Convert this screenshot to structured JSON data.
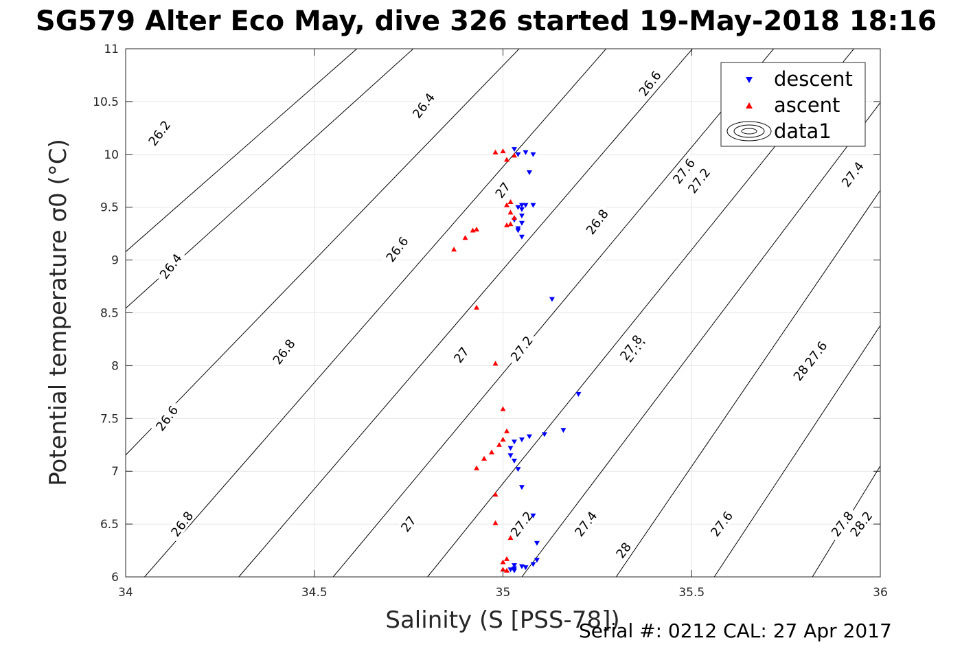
{
  "chart_data": {
    "type": "scatter",
    "title": "SG579 Alter Eco May, dive 326 started 19-May-2018 18:16",
    "xlabel": "Salinity (S [PSS-78])",
    "ylabel": "Potential temperature σ0 (°C)",
    "xlim": [
      34,
      36
    ],
    "ylim": [
      6,
      11
    ],
    "grid": true,
    "legend_placement": "top-right",
    "x_ticks": [
      "34",
      "34.5",
      "35",
      "35.5",
      "36"
    ],
    "y_ticks": [
      "6",
      "6.5",
      "7",
      "7.5",
      "8",
      "8.5",
      "9",
      "9.5",
      "10",
      "10.5",
      "11"
    ],
    "footer": "Serial #: 0212  CAL: 27 Apr 2017",
    "contours": {
      "legend_name": "data1",
      "line_color": "#000000",
      "levels": [
        {
          "value": 26.2,
          "label": "26.2",
          "x": [
            33.72,
            36.0
          ],
          "y": [
            8.2,
            15.35
          ]
        },
        {
          "value": 26.4,
          "label": "26.4",
          "x": [
            33.72,
            36.0
          ],
          "y": [
            7.64,
            14.99
          ]
        },
        {
          "value": 26.6,
          "label": "26.6",
          "x": [
            33.72,
            36.0
          ],
          "y": [
            6.12,
            14.53
          ]
        },
        {
          "value": 26.8,
          "label": "26.8",
          "x": [
            34.05,
            36.0
          ],
          "y": [
            6.0,
            13.97
          ]
        },
        {
          "value": 27.0,
          "label": "27",
          "x": [
            34.3,
            36.0
          ],
          "y": [
            6.0,
            13.07
          ]
        },
        {
          "value": 27.2,
          "label": "27.2",
          "x": [
            34.55,
            36.0
          ],
          "y": [
            6.0,
            12.21
          ]
        },
        {
          "value": 27.4,
          "label": "27.4",
          "x": [
            34.8,
            36.0
          ],
          "y": [
            6.0,
            11.31
          ]
        },
        {
          "value": 27.6,
          "label": "27.6",
          "x": [
            35.05,
            36.0
          ],
          "y": [
            6.0,
            10.49
          ]
        },
        {
          "value": 27.8,
          "label": "27.8",
          "x": [
            35.3,
            36.0
          ],
          "y": [
            6.0,
            9.66
          ]
        },
        {
          "value": 28.0,
          "label": "28",
          "x": [
            35.56,
            36.0
          ],
          "y": [
            6.0,
            8.38
          ]
        },
        {
          "value": 28.2,
          "label": "28.2",
          "x": [
            35.82,
            36.0
          ],
          "y": [
            6.0,
            7.05
          ]
        }
      ],
      "labels": [
        {
          "text": "26.2",
          "x": 34.09,
          "y": 10.2
        },
        {
          "text": "26.4",
          "x": 34.79,
          "y": 10.46
        },
        {
          "text": "26.6",
          "x": 35.39,
          "y": 10.67
        },
        {
          "text": "26.4",
          "x": 34.12,
          "y": 8.94
        },
        {
          "text": "26.6",
          "x": 34.72,
          "y": 9.1
        },
        {
          "text": "26.8",
          "x": 35.25,
          "y": 9.36
        },
        {
          "text": "27",
          "x": 35.0,
          "y": 9.66
        },
        {
          "text": "27.2",
          "x": 35.52,
          "y": 9.75
        },
        {
          "text": "27.4",
          "x": 36.0,
          "y": 9.81
        },
        {
          "text": "27.6",
          "x": 36.48,
          "y": 9.84
        },
        {
          "text": "26.6",
          "x": 34.11,
          "y": 7.5
        },
        {
          "text": "26.8",
          "x": 34.42,
          "y": 8.13
        },
        {
          "text": "27",
          "x": 34.89,
          "y": 8.1
        },
        {
          "text": "27.2",
          "x": 35.05,
          "y": 8.16
        },
        {
          "text": "27.4",
          "x": 35.35,
          "y": 8.15
        },
        {
          "text": "27.6",
          "x": 35.83,
          "y": 8.11
        },
        {
          "text": "27.8",
          "x": 36.34,
          "y": 8.17
        },
        {
          "text": "28",
          "x": 36.79,
          "y": 7.93
        },
        {
          "text": "26.8",
          "x": 34.15,
          "y": 6.5
        },
        {
          "text": "27",
          "x": 34.75,
          "y": 6.5
        },
        {
          "text": "27.2",
          "x": 35.05,
          "y": 6.5
        },
        {
          "text": "27.4",
          "x": 35.22,
          "y": 6.5
        },
        {
          "text": "27.6",
          "x": 35.58,
          "y": 6.5
        },
        {
          "text": "27.8",
          "x": 35.9,
          "y": 6.5
        },
        {
          "text": "28",
          "x": 36.32,
          "y": 6.25
        },
        {
          "text": "28.2",
          "x": 36.95,
          "y": 6.5
        }
      ]
    },
    "series": [
      {
        "name": "descent",
        "marker": "triangle-down",
        "color": "#0000ff",
        "x": [
          35.03,
          35.04,
          35.06,
          35.08,
          35.07,
          35.05,
          35.04,
          35.05,
          35.06,
          35.05,
          35.08,
          35.04,
          35.05,
          35.03,
          35.04,
          35.05,
          35.13,
          35.2,
          35.16,
          35.11,
          35.07,
          35.05,
          35.03,
          35.02,
          35.02,
          35.03,
          35.04,
          35.05,
          35.02,
          35.03,
          35.03,
          35.05,
          35.08,
          35.09,
          35.09,
          35.08,
          35.06,
          35.03
        ],
        "y": [
          10.05,
          10.0,
          10.02,
          10.0,
          9.83,
          9.52,
          9.5,
          9.48,
          9.52,
          9.35,
          9.52,
          9.3,
          9.42,
          9.38,
          9.28,
          9.22,
          8.63,
          7.73,
          7.39,
          7.35,
          7.33,
          7.3,
          7.28,
          7.22,
          7.15,
          7.1,
          7.02,
          6.85,
          6.07,
          6.08,
          6.11,
          6.1,
          6.12,
          6.16,
          6.32,
          6.58,
          6.09,
          6.06
        ]
      },
      {
        "name": "ascent",
        "marker": "triangle-up",
        "color": "#ff0000",
        "x": [
          34.98,
          35.0,
          35.01,
          35.03,
          35.02,
          35.01,
          35.02,
          35.03,
          35.02,
          35.01,
          34.93,
          34.92,
          34.9,
          34.87,
          34.93,
          34.98,
          35.0,
          35.01,
          35.0,
          34.99,
          34.97,
          34.95,
          34.93,
          34.98,
          34.98,
          35.02,
          35.0,
          35.01,
          35.0,
          35.01
        ],
        "y": [
          10.02,
          10.03,
          9.95,
          9.99,
          9.55,
          9.52,
          9.45,
          9.4,
          9.34,
          9.33,
          9.29,
          9.28,
          9.21,
          9.1,
          8.55,
          8.02,
          7.59,
          7.38,
          7.3,
          7.25,
          7.18,
          7.12,
          7.03,
          6.78,
          6.51,
          6.37,
          6.14,
          6.17,
          6.07,
          6.06
        ]
      }
    ]
  }
}
